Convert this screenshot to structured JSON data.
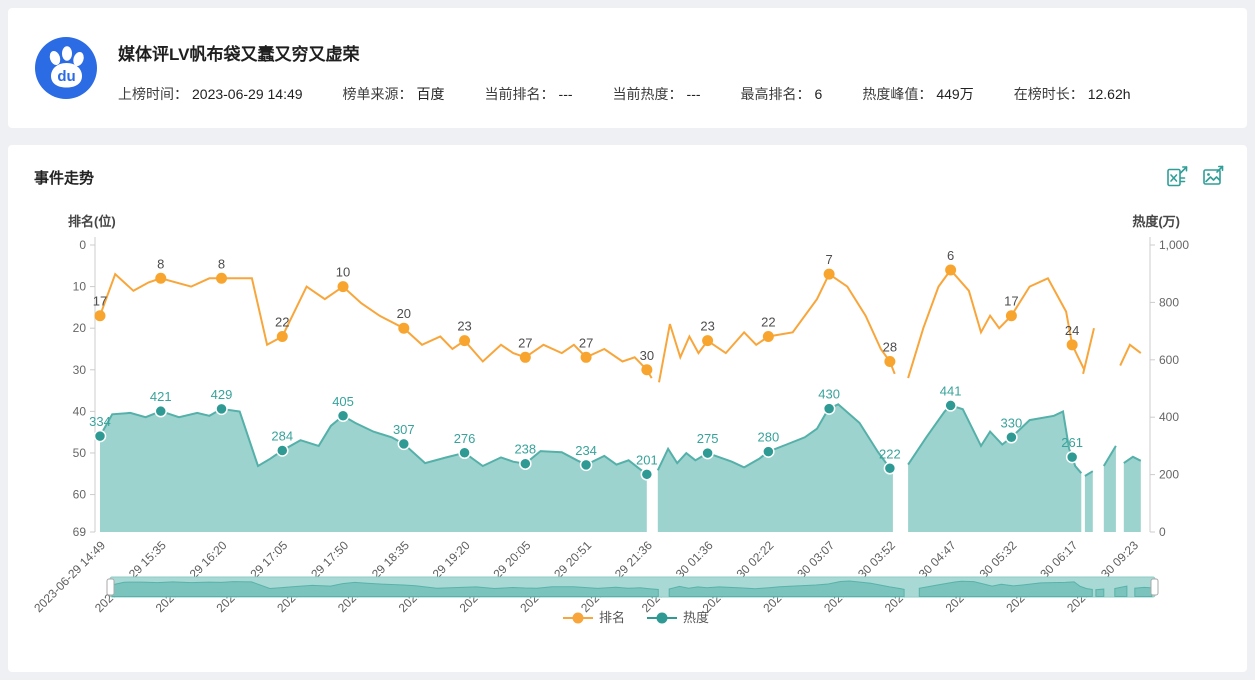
{
  "page": {
    "background": "#eef0f4",
    "card_background": "#ffffff"
  },
  "header": {
    "logo_name": "baidu-logo",
    "logo_text": "du",
    "title": "媒体评LV帆布袋又蠢又穷又虚荣",
    "meta": [
      {
        "label": "上榜时间：",
        "value": "2023-06-29 14:49"
      },
      {
        "label": "榜单来源：",
        "value": "百度"
      },
      {
        "label": "当前排名：",
        "value": "---"
      },
      {
        "label": "当前热度：",
        "value": "---"
      },
      {
        "label": "最高排名：",
        "value": "6"
      },
      {
        "label": "热度峰值：",
        "value": "449万"
      },
      {
        "label": "在榜时长：",
        "value": "12.62h"
      }
    ]
  },
  "trend": {
    "section_title": "事件走势",
    "actions": [
      {
        "name": "export-excel-icon"
      },
      {
        "name": "export-image-icon"
      }
    ]
  },
  "chart_data": {
    "type": "line",
    "title": "事件走势",
    "grid": false,
    "x_label_rotation": 45,
    "categories": [
      "2023-06-29 14:49",
      "2023-06-29 15:35",
      "2023-06-29 16:20",
      "2023-06-29 17:05",
      "2023-06-29 17:50",
      "2023-06-29 18:35",
      "2023-06-29 19:20",
      "2023-06-29 20:05",
      "2023-06-29 20:51",
      "2023-06-29 21:36",
      "2023-06-30 01:36",
      "2023-06-30 02:22",
      "2023-06-30 03:07",
      "2023-06-30 03:52",
      "2023-06-30 04:47",
      "2023-06-30 05:32",
      "2023-06-30 06:17",
      "2023-06-30 09:23"
    ],
    "gaps_after_category_index": [
      9,
      13
    ],
    "left_axis": {
      "name": "排名(位)",
      "min": 0,
      "max": 69,
      "inverted": true,
      "ticks": [
        0,
        10,
        20,
        30,
        40,
        50,
        60,
        69
      ]
    },
    "right_axis": {
      "name": "热度(万)",
      "min": 0,
      "max": 1000,
      "ticks": [
        0,
        200,
        400,
        600,
        800,
        1000
      ],
      "tick_labels": [
        "0",
        "200",
        "400",
        "600",
        "800",
        "1,000"
      ]
    },
    "legend": [
      {
        "label": "排名",
        "color": "#f8a63b"
      },
      {
        "label": "热度",
        "color": "#2e9a93"
      }
    ],
    "legend_position": "bottom-center",
    "series": [
      {
        "name": "排名",
        "type": "line",
        "y_axis": "left",
        "color": "#f8a63b",
        "marker_color": "#f7a52f",
        "label_color": "#4d4d4d",
        "values": [
          17,
          8,
          8,
          22,
          10,
          20,
          23,
          27,
          27,
          30,
          23,
          22,
          7,
          28,
          6,
          17,
          24
        ],
        "detail_estimated": [
          [
            0.25,
            7
          ],
          [
            0.55,
            11
          ],
          [
            0.8,
            9
          ],
          [
            1.5,
            10
          ],
          [
            1.8,
            8
          ],
          [
            2.5,
            8
          ],
          [
            2.75,
            24
          ],
          [
            3.4,
            10
          ],
          [
            3.7,
            13
          ],
          [
            4.3,
            14
          ],
          [
            4.6,
            17
          ],
          [
            5.3,
            24
          ],
          [
            5.6,
            22
          ],
          [
            5.8,
            25
          ],
          [
            6.3,
            28
          ],
          [
            6.6,
            24
          ],
          [
            6.8,
            26
          ],
          [
            7.3,
            24
          ],
          [
            7.6,
            26
          ],
          [
            7.8,
            24
          ],
          [
            8.3,
            25
          ],
          [
            8.6,
            28
          ],
          [
            8.8,
            27
          ],
          [
            9.08,
            32
          ],
          [
            9.2,
            33
          ],
          [
            9.38,
            19
          ],
          [
            9.55,
            27
          ],
          [
            9.7,
            22
          ],
          [
            9.85,
            26
          ],
          [
            10.3,
            26
          ],
          [
            10.6,
            21
          ],
          [
            10.8,
            24
          ],
          [
            11.4,
            21
          ],
          [
            11.8,
            13
          ],
          [
            12.3,
            10
          ],
          [
            12.6,
            17
          ],
          [
            12.85,
            25
          ],
          [
            13.08,
            31
          ],
          [
            13.3,
            32
          ],
          [
            13.55,
            20
          ],
          [
            13.8,
            10
          ],
          [
            14.3,
            11
          ],
          [
            14.5,
            21
          ],
          [
            14.65,
            17
          ],
          [
            14.8,
            20
          ],
          [
            15.3,
            10
          ],
          [
            15.6,
            8
          ],
          [
            15.9,
            16
          ],
          [
            16.1,
            27
          ],
          [
            16.2,
            30
          ]
        ],
        "trailing_fragments_estimated": [
          [
            [
              16.18,
              31
            ],
            [
              16.36,
              20
            ]
          ],
          [
            [
              16.79,
              29
            ],
            [
              16.95,
              24
            ],
            [
              17.13,
              26
            ]
          ]
        ]
      },
      {
        "name": "热度",
        "type": "area",
        "y_axis": "right",
        "color": "#55b0a9",
        "marker_color": "#2e9a93",
        "area_color": "#9cd3ce",
        "label_color": "#38a39b",
        "values": [
          334,
          421,
          429,
          284,
          405,
          307,
          276,
          238,
          234,
          201,
          275,
          280,
          430,
          222,
          441,
          330,
          261
        ],
        "detail_estimated": [
          [
            0.2,
            410
          ],
          [
            0.5,
            415
          ],
          [
            0.75,
            400
          ],
          [
            1.3,
            400
          ],
          [
            1.6,
            415
          ],
          [
            1.8,
            405
          ],
          [
            2.3,
            420
          ],
          [
            2.6,
            230
          ],
          [
            2.8,
            255
          ],
          [
            3.3,
            320
          ],
          [
            3.6,
            300
          ],
          [
            3.8,
            370
          ],
          [
            4.2,
            380
          ],
          [
            4.5,
            350
          ],
          [
            4.8,
            330
          ],
          [
            5.35,
            240
          ],
          [
            5.7,
            260
          ],
          [
            6.3,
            230
          ],
          [
            6.6,
            260
          ],
          [
            6.8,
            245
          ],
          [
            7.25,
            282
          ],
          [
            7.6,
            278
          ],
          [
            7.85,
            250
          ],
          [
            8.3,
            265
          ],
          [
            8.5,
            235
          ],
          [
            8.7,
            250
          ],
          [
            8.85,
            225
          ],
          [
            9.18,
            215
          ],
          [
            9.35,
            290
          ],
          [
            9.5,
            240
          ],
          [
            9.65,
            275
          ],
          [
            9.8,
            250
          ],
          [
            10.4,
            245
          ],
          [
            10.6,
            225
          ],
          [
            10.85,
            255
          ],
          [
            11.3,
            305
          ],
          [
            11.6,
            330
          ],
          [
            11.8,
            360
          ],
          [
            11.95,
            415
          ],
          [
            12.15,
            445
          ],
          [
            12.5,
            380
          ],
          [
            12.8,
            280
          ],
          [
            13.05,
            205
          ],
          [
            13.3,
            235
          ],
          [
            13.6,
            330
          ],
          [
            13.8,
            390
          ],
          [
            13.9,
            420
          ],
          [
            14.2,
            428
          ],
          [
            14.5,
            300
          ],
          [
            14.65,
            350
          ],
          [
            14.85,
            305
          ],
          [
            15.3,
            390
          ],
          [
            15.7,
            405
          ],
          [
            15.85,
            420
          ],
          [
            15.95,
            290
          ],
          [
            16.05,
            230
          ],
          [
            16.15,
            205
          ]
        ],
        "trailing_fragments_estimated": [
          [
            [
              16.21,
              195
            ],
            [
              16.34,
              212
            ]
          ],
          [
            [
              16.52,
              230
            ],
            [
              16.72,
              300
            ]
          ],
          [
            [
              16.85,
              240
            ],
            [
              17.0,
              262
            ],
            [
              17.13,
              248
            ]
          ]
        ]
      }
    ],
    "datazoom": {
      "present": true,
      "color": "#7bc4bd",
      "background": "#a8d9d4"
    }
  }
}
